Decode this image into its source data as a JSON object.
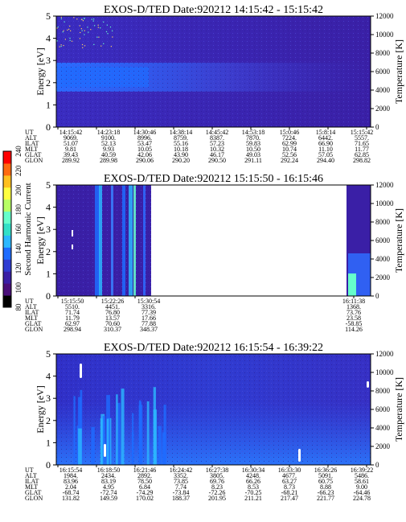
{
  "chart_data": [
    {
      "type": "heatmap",
      "title": "EXOS-D/TED",
      "date_label": "Date:920212",
      "time_range": "14:15:42 - 15:15:42",
      "ylabel": "Energy [eV]",
      "y2label": "Temperature [K]",
      "ylim": [
        0,
        5
      ],
      "y2lim": [
        0,
        12000
      ],
      "yticks": [
        "0",
        "1",
        "2",
        "3",
        "4",
        "5"
      ],
      "y2ticks": [
        "0",
        "2000",
        "4000",
        "6000",
        "8000",
        "10000",
        "12000"
      ],
      "orbit_rows": [
        "UT",
        "ALT",
        "ILAT",
        "MLT",
        "GLAT",
        "GLON"
      ],
      "orbit_columns": [
        [
          "14:15:42",
          "9069.",
          "51.07",
          "9.81",
          "39.43",
          "289.92"
        ],
        [
          "14:23:18",
          "9100.",
          "52.13",
          "9.93",
          "40.59",
          "289.98"
        ],
        [
          "14:30:46",
          "8996.",
          "53.47",
          "10.05",
          "42.06",
          "290.06"
        ],
        [
          "14:38:14",
          "8759.",
          "55.16",
          "10.18",
          "43.90",
          "290.20"
        ],
        [
          "14:45:42",
          "8387.",
          "57.23",
          "10.32",
          "46.17",
          "290.50"
        ],
        [
          "14:53:18",
          "7870.",
          "59.83",
          "10.50",
          "49.03",
          "291.11"
        ],
        [
          "15:0:46",
          "7224.",
          "62.99",
          "10.74",
          "52.56",
          "292.24"
        ],
        [
          "15:8:14",
          "6442.",
          "66.90",
          "11.10",
          "57.05",
          "294.40"
        ],
        [
          "15:15:42",
          "5557.",
          "71.65",
          "11.77",
          "62.85",
          "298.82"
        ]
      ]
    },
    {
      "type": "heatmap",
      "title": "EXOS-D/TED",
      "date_label": "Date:920212",
      "time_range": "15:15:50 - 16:15:46",
      "ylabel": "Energy [eV]",
      "y2label": "Temperature [K]",
      "ylim": [
        0,
        5
      ],
      "y2lim": [
        0,
        12000
      ],
      "yticks": [
        "0",
        "1",
        "2",
        "3",
        "4",
        "5"
      ],
      "y2ticks": [
        "0",
        "2000",
        "4000",
        "6000",
        "8000",
        "10000",
        "12000"
      ],
      "orbit_rows": [
        "UT",
        "ALT",
        "ILAT",
        "MLT",
        "GLAT",
        "GLON"
      ],
      "orbit_columns": [
        [
          "15:15:50",
          "5510.",
          "71.74",
          "11.79",
          "62.97",
          "298.94"
        ],
        [
          "15:22:26",
          "4451.",
          "76.80",
          "13.57",
          "70.60",
          "310.37"
        ],
        [
          "15:30:54",
          "3316.",
          "77.39",
          "17.66",
          "77.88",
          "348.37"
        ],
        [
          "16:11:38",
          "1368.",
          "73.76",
          "23.58",
          "-58.85",
          "114.26"
        ]
      ],
      "colorbar": {
        "label": "Second Harmonic Current",
        "ticks": [
          "80",
          "100",
          "120",
          "140",
          "160",
          "180",
          "200",
          "220",
          "240"
        ]
      }
    },
    {
      "type": "heatmap",
      "title": "EXOS-D/TED",
      "date_label": "Date:920212",
      "time_range": "16:15:54 - 16:39:22",
      "ylabel": "Energy [eV]",
      "y2label": "Temperature [K]",
      "ylim": [
        0,
        5
      ],
      "y2lim": [
        0,
        12000
      ],
      "yticks": [
        "0",
        "1",
        "2",
        "3",
        "4",
        "5"
      ],
      "y2ticks": [
        "0",
        "2000",
        "4000",
        "6000",
        "8000",
        "10000",
        "12000"
      ],
      "orbit_rows": [
        "UT",
        "ALT",
        "ILAT",
        "MLT",
        "GLAT",
        "GLON"
      ],
      "orbit_columns": [
        [
          "16:15:54",
          "1984.",
          "83.96",
          "2.04",
          "-68.74",
          "131.82"
        ],
        [
          "16:18:50",
          "2434.",
          "83.19",
          "4.95",
          "-72.74",
          "149.59"
        ],
        [
          "16:21:46",
          "2892.",
          "78.50",
          "6.84",
          "-74.29",
          "170.02"
        ],
        [
          "16:24:42",
          "3352.",
          "73.85",
          "7.74",
          "-73.84",
          "188.37"
        ],
        [
          "16:27:38",
          "3805.",
          "69.76",
          "8.23",
          "-72.26",
          "201.95"
        ],
        [
          "16:30:34",
          "4248.",
          "66.26",
          "8.53",
          "-70.25",
          "211.21"
        ],
        [
          "16:33:30",
          "4677.",
          "63.27",
          "8.73",
          "-68.21",
          "217.47"
        ],
        [
          "16:36:26",
          "5091.",
          "60.75",
          "8.88",
          "-66.23",
          "221.77"
        ],
        [
          "16:39:22",
          "5486.",
          "58.61",
          "9.00",
          "-64.46",
          "224.78"
        ]
      ]
    }
  ]
}
